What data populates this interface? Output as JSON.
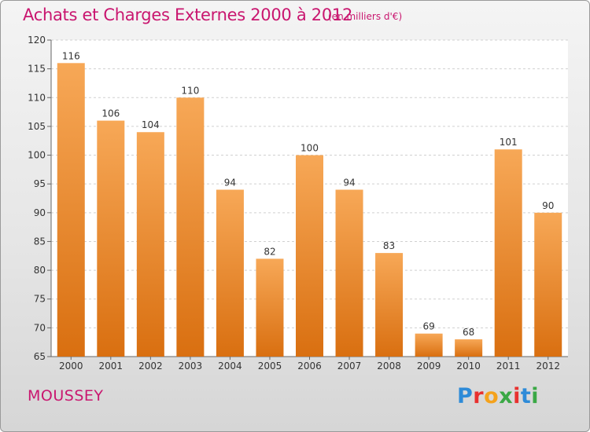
{
  "title": "Achats et Charges Externes 2000 à 2012",
  "subtitle": "(en milliers d'€)",
  "town": "MOUSSEY",
  "logo": {
    "letters": [
      "P",
      "r",
      "o",
      "x",
      "i",
      "t",
      "i"
    ],
    "colors": [
      "#2e8bd8",
      "#e8312f",
      "#f4a21c",
      "#3aa845",
      "#e8312f",
      "#2e8bd8",
      "#3aa845"
    ]
  },
  "colors": {
    "bar_top": "#f7a857",
    "bar_bottom": "#d96f10",
    "text": "#333333",
    "accent": "#c9166f"
  },
  "chart_data": {
    "type": "bar",
    "categories": [
      "2000",
      "2001",
      "2002",
      "2003",
      "2004",
      "2005",
      "2006",
      "2007",
      "2008",
      "2009",
      "2010",
      "2011",
      "2012"
    ],
    "values": [
      116,
      106,
      104,
      110,
      94,
      82,
      100,
      94,
      83,
      69,
      68,
      101,
      90
    ],
    "ylim": [
      65,
      120
    ],
    "yticks": [
      65,
      70,
      75,
      80,
      85,
      90,
      95,
      100,
      105,
      110,
      115,
      120
    ],
    "grid": true,
    "legend": "none"
  }
}
